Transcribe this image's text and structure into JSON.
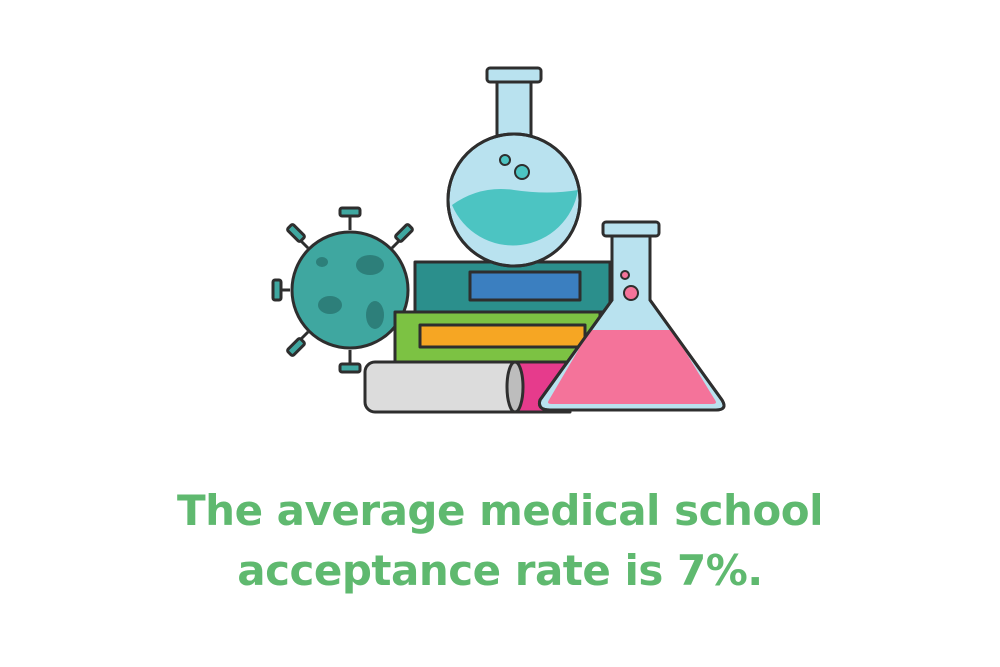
{
  "headline": {
    "lines": [
      "The average medical school",
      "acceptance rate is 7%."
    ]
  }
}
